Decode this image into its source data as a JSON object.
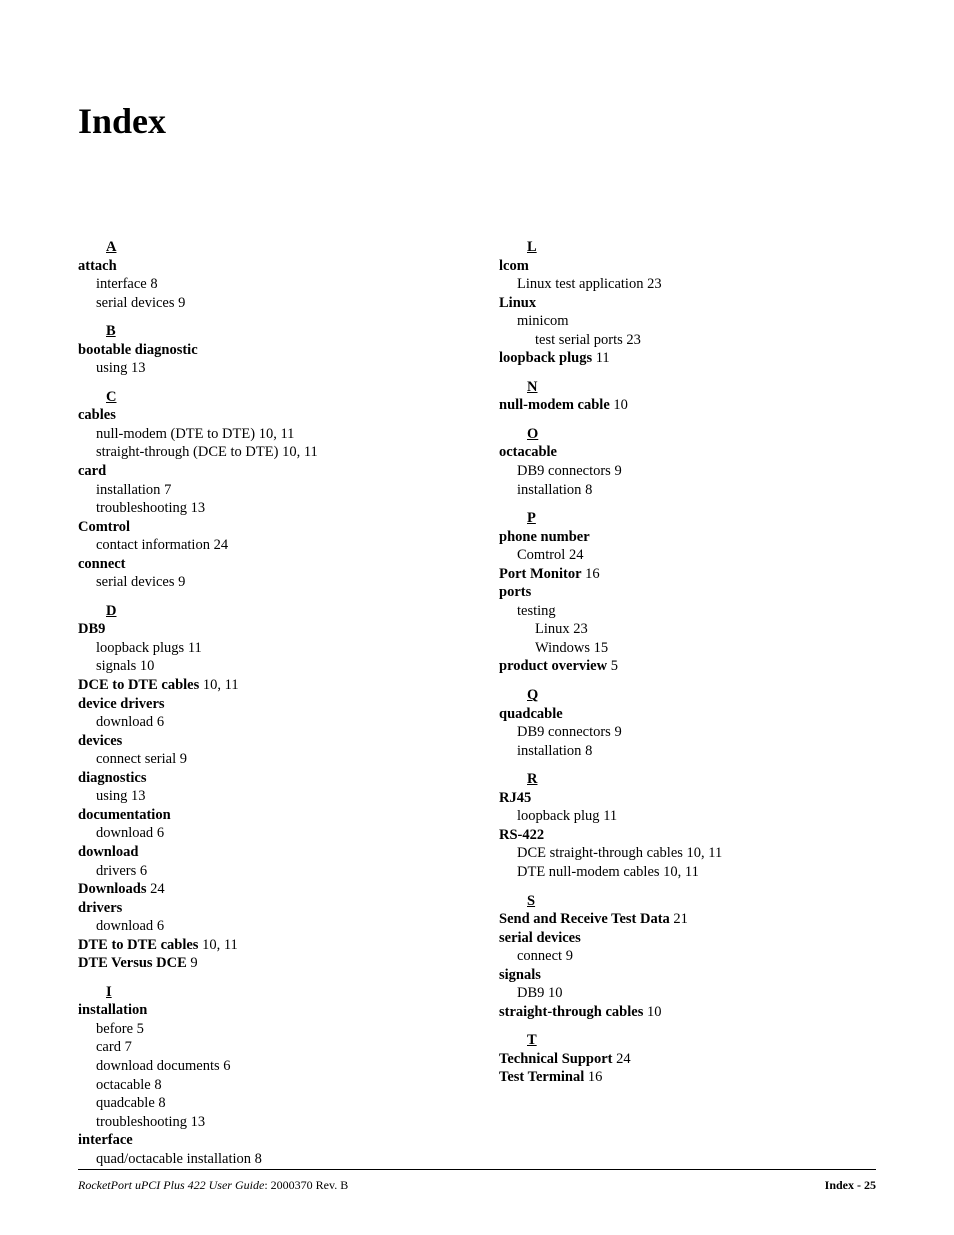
{
  "title": "Index",
  "footer": {
    "product": "RocketPort uPCI Plus 422 User Guide",
    "docnum": ": 2000370 Rev. B",
    "right": "Index - 25"
  },
  "left": [
    {
      "type": "letter",
      "text": "A",
      "first": true
    },
    {
      "type": "term",
      "text": "attach"
    },
    {
      "type": "sub1",
      "label": "interface",
      "pages": "8"
    },
    {
      "type": "sub1",
      "label": "serial devices",
      "pages": "9"
    },
    {
      "type": "letter",
      "text": "B"
    },
    {
      "type": "term",
      "text": "bootable diagnostic"
    },
    {
      "type": "sub1",
      "label": "using",
      "pages": "13"
    },
    {
      "type": "letter",
      "text": "C"
    },
    {
      "type": "term",
      "text": "cables"
    },
    {
      "type": "sub1",
      "label": "null-modem (DTE to DTE)",
      "pages": "10, 11"
    },
    {
      "type": "sub1",
      "label": "straight-through (DCE to DTE)",
      "pages": "10, 11"
    },
    {
      "type": "term",
      "text": "card"
    },
    {
      "type": "sub1",
      "label": "installation",
      "pages": "7"
    },
    {
      "type": "sub1",
      "label": "troubleshooting",
      "pages": "13"
    },
    {
      "type": "term",
      "text": "Comtrol"
    },
    {
      "type": "sub1",
      "label": "contact information",
      "pages": "24"
    },
    {
      "type": "term",
      "text": "connect"
    },
    {
      "type": "sub1",
      "label": "serial devices",
      "pages": "9"
    },
    {
      "type": "letter",
      "text": "D"
    },
    {
      "type": "term",
      "text": "DB9"
    },
    {
      "type": "sub1",
      "label": "loopback plugs",
      "pages": "11"
    },
    {
      "type": "sub1",
      "label": "signals",
      "pages": "10"
    },
    {
      "type": "termpages",
      "text": "DCE to DTE cables",
      "pages": "10, 11"
    },
    {
      "type": "term",
      "text": "device drivers"
    },
    {
      "type": "sub1",
      "label": "download",
      "pages": "6"
    },
    {
      "type": "term",
      "text": "devices"
    },
    {
      "type": "sub1",
      "label": "connect serial",
      "pages": "9"
    },
    {
      "type": "term",
      "text": "diagnostics"
    },
    {
      "type": "sub1",
      "label": "using",
      "pages": "13"
    },
    {
      "type": "term",
      "text": "documentation"
    },
    {
      "type": "sub1",
      "label": "download",
      "pages": "6"
    },
    {
      "type": "term",
      "text": "download"
    },
    {
      "type": "sub1",
      "label": "drivers",
      "pages": "6"
    },
    {
      "type": "termpages",
      "text": "Downloads",
      "pages": "24"
    },
    {
      "type": "term",
      "text": "drivers"
    },
    {
      "type": "sub1",
      "label": "download",
      "pages": "6"
    },
    {
      "type": "termpages",
      "text": "DTE to DTE cables",
      "pages": "10, 11"
    },
    {
      "type": "termpages",
      "text": "DTE Versus DCE",
      "pages": "9"
    },
    {
      "type": "letter",
      "text": "I"
    },
    {
      "type": "term",
      "text": "installation"
    },
    {
      "type": "sub1",
      "label": "before",
      "pages": "5"
    },
    {
      "type": "sub1",
      "label": "card",
      "pages": "7"
    },
    {
      "type": "sub1",
      "label": "download documents",
      "pages": "6"
    },
    {
      "type": "sub1",
      "label": "octacable",
      "pages": "8"
    },
    {
      "type": "sub1",
      "label": "quadcable",
      "pages": "8"
    },
    {
      "type": "sub1",
      "label": "troubleshooting",
      "pages": "13"
    },
    {
      "type": "term",
      "text": "interface"
    },
    {
      "type": "sub1",
      "label": "quad/octacable installation",
      "pages": "8"
    }
  ],
  "right": [
    {
      "type": "letter",
      "text": "L",
      "first": true
    },
    {
      "type": "term",
      "text": "lcom"
    },
    {
      "type": "sub1",
      "label": "Linux test application",
      "pages": "23"
    },
    {
      "type": "term",
      "text": "Linux"
    },
    {
      "type": "sub1",
      "label": "minicom",
      "pages": ""
    },
    {
      "type": "sub2",
      "label": "test serial ports",
      "pages": "23"
    },
    {
      "type": "termpages",
      "text": "loopback plugs",
      "pages": "11"
    },
    {
      "type": "letter",
      "text": "N"
    },
    {
      "type": "termpages",
      "text": "null-modem cable",
      "pages": "10"
    },
    {
      "type": "letter",
      "text": "O"
    },
    {
      "type": "term",
      "text": "octacable"
    },
    {
      "type": "sub1",
      "label": "DB9 connectors",
      "pages": "9"
    },
    {
      "type": "sub1",
      "label": "installation",
      "pages": "8"
    },
    {
      "type": "letter",
      "text": "P"
    },
    {
      "type": "term",
      "text": "phone number"
    },
    {
      "type": "sub1",
      "label": "Comtrol",
      "pages": "24"
    },
    {
      "type": "termpages",
      "text": "Port Monitor",
      "pages": "16"
    },
    {
      "type": "term",
      "text": "ports"
    },
    {
      "type": "sub1",
      "label": "testing",
      "pages": ""
    },
    {
      "type": "sub2",
      "label": "Linux",
      "pages": "23"
    },
    {
      "type": "sub2",
      "label": "Windows",
      "pages": "15"
    },
    {
      "type": "termpages",
      "text": "product overview",
      "pages": "5"
    },
    {
      "type": "letter",
      "text": "Q"
    },
    {
      "type": "term",
      "text": "quadcable"
    },
    {
      "type": "sub1",
      "label": "DB9 connectors",
      "pages": "9"
    },
    {
      "type": "sub1",
      "label": "installation",
      "pages": "8"
    },
    {
      "type": "letter",
      "text": "R"
    },
    {
      "type": "term",
      "text": "RJ45"
    },
    {
      "type": "sub1",
      "label": "loopback plug",
      "pages": "11"
    },
    {
      "type": "term",
      "text": "RS-422"
    },
    {
      "type": "sub1",
      "label": "DCE straight-through cables",
      "pages": "10, 11"
    },
    {
      "type": "sub1",
      "label": "DTE null-modem cables",
      "pages": "10, 11"
    },
    {
      "type": "letter",
      "text": "S"
    },
    {
      "type": "termpages",
      "text": "Send and Receive Test Data",
      "pages": "21"
    },
    {
      "type": "term",
      "text": "serial devices"
    },
    {
      "type": "sub1",
      "label": "connect",
      "pages": "9"
    },
    {
      "type": "term",
      "text": "signals"
    },
    {
      "type": "sub1",
      "label": "DB9",
      "pages": "10"
    },
    {
      "type": "termpages",
      "text": "straight-through cables",
      "pages": "10"
    },
    {
      "type": "letter",
      "text": "T"
    },
    {
      "type": "termpages",
      "text": "Technical Support",
      "pages": "24"
    },
    {
      "type": "termpages",
      "text": "Test Terminal",
      "pages": "16"
    }
  ]
}
